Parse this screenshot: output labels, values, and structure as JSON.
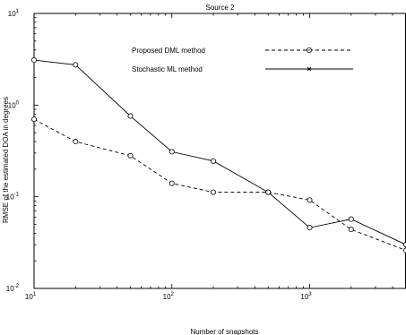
{
  "chart_data": {
    "type": "line",
    "title": "Source 2",
    "xlabel": "Number of snapshots",
    "ylabel": "RMSE of the estimated DOA in degrees",
    "x_scale": "log",
    "y_scale": "log",
    "xlim": [
      10,
      5000
    ],
    "ylim": [
      0.01,
      10
    ],
    "grid": false,
    "legend_position": "top-right",
    "x_ticks": [
      {
        "value": 10,
        "base": "10",
        "exp": "1"
      },
      {
        "value": 100,
        "base": "10",
        "exp": "2"
      },
      {
        "value": 1000,
        "base": "10",
        "exp": "3"
      }
    ],
    "y_ticks": [
      {
        "value": 0.01,
        "base": "10",
        "exp": "-2"
      },
      {
        "value": 0.1,
        "base": "10",
        "exp": "-1"
      },
      {
        "value": 1,
        "base": "10",
        "exp": "0"
      },
      {
        "value": 10,
        "base": "10",
        "exp": "1"
      }
    ],
    "series": [
      {
        "name": "Proposed DML method",
        "line_style": "dashed",
        "marker": "circle",
        "color": "#000000",
        "x": [
          10,
          20,
          50,
          100,
          200,
          500,
          1000,
          2000,
          5000
        ],
        "y": [
          0.7,
          0.4,
          0.28,
          0.14,
          0.112,
          0.112,
          0.092,
          0.044,
          0.026
        ]
      },
      {
        "name": "Stochastic ML method",
        "line_style": "solid",
        "marker": "circle",
        "legend_marker": "x",
        "color": "#000000",
        "x": [
          10,
          20,
          50,
          100,
          200,
          500,
          1000,
          2000,
          5000
        ],
        "y": [
          3.1,
          2.75,
          0.76,
          0.31,
          0.245,
          0.112,
          0.046,
          0.057,
          0.03
        ]
      }
    ]
  }
}
